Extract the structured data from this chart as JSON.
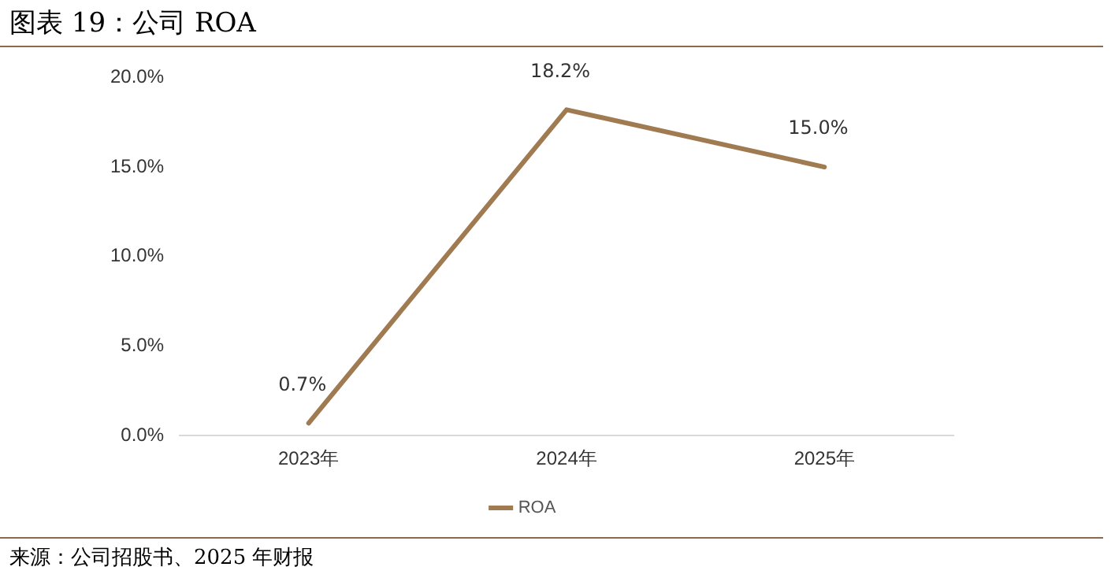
{
  "chart_data": {
    "type": "line",
    "title": "图表 19：公司 ROA",
    "categories": [
      "2023年",
      "2024年",
      "2025年"
    ],
    "series": [
      {
        "name": "ROA",
        "color": "#a07a50",
        "values": [
          0.7,
          18.2,
          15.0
        ],
        "value_labels": [
          "0.7%",
          "18.2%",
          "15.0%"
        ]
      }
    ],
    "ylim": [
      0,
      20
    ],
    "yticks": [
      {
        "value": 0,
        "label": "0.0%"
      },
      {
        "value": 5,
        "label": "5.0%"
      },
      {
        "value": 10,
        "label": "10.0%"
      },
      {
        "value": 15,
        "label": "15.0%"
      },
      {
        "value": 20,
        "label": "20.0%"
      }
    ],
    "grid": false,
    "legend": "bottom",
    "marker": "none",
    "line_style": "solid",
    "annotations": [
      "来源：公司招股书、2025 年财报"
    ]
  }
}
